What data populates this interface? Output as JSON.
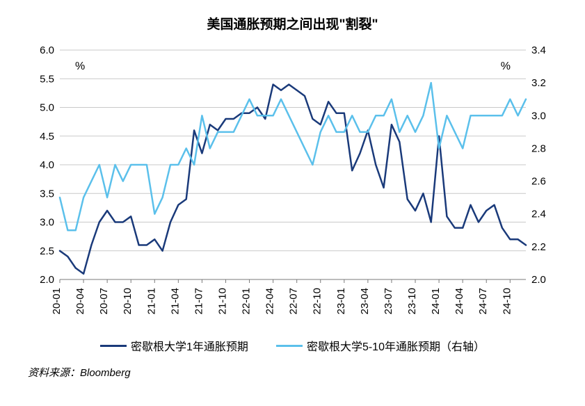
{
  "title": "美国通胀预期之间出现\"割裂\"",
  "source": "资料来源：Bloomberg",
  "chart": {
    "type": "line",
    "background_color": "#ffffff",
    "grid_color": "#c9c9c9",
    "axis_color": "#7a7a7a",
    "title_fontsize": 19,
    "label_fontsize": 15,
    "tick_fontsize": 15,
    "left_axis": {
      "min": 2.0,
      "max": 6.0,
      "step": 0.5,
      "unit": "%",
      "ticks": [
        "2.0",
        "2.5",
        "3.0",
        "3.5",
        "4.0",
        "4.5",
        "5.0",
        "5.5",
        "6.0"
      ]
    },
    "right_axis": {
      "min": 2.0,
      "max": 3.4,
      "step": 0.2,
      "unit": "%",
      "ticks": [
        "2.0",
        "2.2",
        "2.4",
        "2.6",
        "2.8",
        "3.0",
        "3.2",
        "3.4"
      ]
    },
    "x_labels": [
      "20-01",
      "20-04",
      "20-07",
      "20-10",
      "21-01",
      "21-04",
      "21-07",
      "21-10",
      "22-01",
      "22-04",
      "22-07",
      "22-10",
      "23-01",
      "23-04",
      "23-07",
      "23-10",
      "24-01",
      "24-04",
      "24-07",
      "24-10"
    ],
    "x_count": 60,
    "series": [
      {
        "name": "密歇根大学1年通胀预期",
        "axis": "left",
        "color": "#1a3a7a",
        "width": 2.5,
        "data": [
          2.5,
          2.4,
          2.2,
          2.1,
          2.6,
          3.0,
          3.2,
          3.0,
          3.0,
          3.1,
          2.6,
          2.6,
          2.7,
          2.5,
          3.0,
          3.3,
          3.4,
          4.6,
          4.2,
          4.7,
          4.6,
          4.8,
          4.8,
          4.9,
          4.9,
          5.0,
          4.8,
          5.4,
          5.3,
          5.4,
          5.3,
          5.2,
          4.8,
          4.7,
          5.1,
          4.9,
          4.9,
          3.9,
          4.2,
          4.6,
          4.0,
          3.6,
          4.7,
          4.4,
          3.4,
          3.2,
          3.5,
          3.0,
          4.5,
          3.1,
          2.9,
          2.9,
          3.3,
          3.0,
          3.2,
          3.3,
          2.9,
          2.7,
          2.7,
          2.6
        ]
      },
      {
        "name": "密歇根大学5-10年通胀预期（右轴）",
        "axis": "right",
        "color": "#5bc0eb",
        "width": 2.5,
        "data": [
          2.5,
          2.3,
          2.3,
          2.5,
          2.6,
          2.7,
          2.5,
          2.7,
          2.6,
          2.7,
          2.7,
          2.7,
          2.4,
          2.5,
          2.7,
          2.7,
          2.8,
          2.7,
          3.0,
          2.8,
          2.9,
          2.9,
          2.9,
          3.0,
          3.1,
          3.0,
          3.0,
          3.0,
          3.1,
          3.0,
          2.9,
          2.8,
          2.7,
          2.9,
          3.0,
          2.9,
          2.9,
          3.0,
          2.9,
          2.9,
          3.0,
          3.0,
          3.1,
          2.9,
          3.0,
          2.9,
          3.0,
          3.2,
          2.8,
          3.0,
          2.9,
          2.8,
          3.0,
          3.0,
          3.0,
          3.0,
          3.0,
          3.1,
          3.0,
          3.1
        ]
      }
    ],
    "legend": [
      {
        "label": "密歇根大学1年通胀预期",
        "color": "#1a3a7a"
      },
      {
        "label": "密歇根大学5-10年通胀预期（右轴）",
        "color": "#5bc0eb"
      }
    ]
  }
}
